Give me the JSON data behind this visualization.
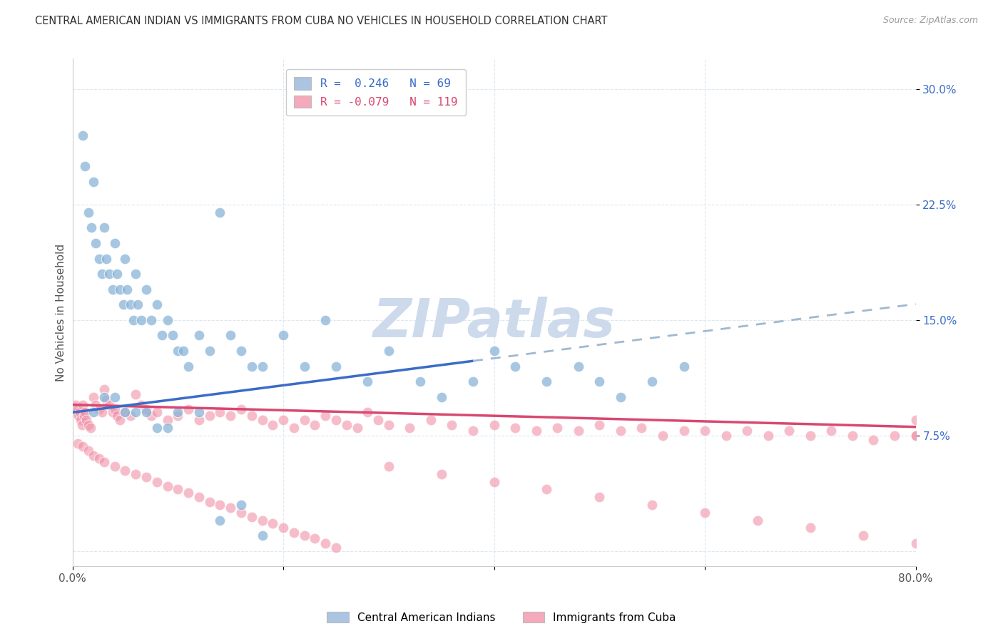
{
  "title": "CENTRAL AMERICAN INDIAN VS IMMIGRANTS FROM CUBA NO VEHICLES IN HOUSEHOLD CORRELATION CHART",
  "source": "Source: ZipAtlas.com",
  "ylabel": "No Vehicles in Household",
  "ytick_values": [
    0.0,
    7.5,
    15.0,
    22.5,
    30.0
  ],
  "xlim": [
    0,
    80
  ],
  "ylim": [
    -1,
    32
  ],
  "legend_blue_label": "R =  0.246   N = 69",
  "legend_pink_label": "R = -0.079   N = 119",
  "legend_blue_color": "#aac4e2",
  "legend_pink_color": "#f5aabc",
  "blue_scatter_color": "#88b4d8",
  "pink_scatter_color": "#f090a8",
  "blue_line_color": "#3a6cc8",
  "pink_line_color": "#d84870",
  "blue_dashed_color": "#a0b8d0",
  "watermark": "ZIPatlas",
  "watermark_color": "#ccdaec",
  "background_color": "#ffffff",
  "grid_color": "#dde8f0",
  "blue_slope": 0.088,
  "blue_intercept": 9.0,
  "blue_solid_end": 38,
  "pink_slope": -0.018,
  "pink_intercept": 9.5,
  "blue_x": [
    1.0,
    1.2,
    1.5,
    1.8,
    2.0,
    2.2,
    2.5,
    2.8,
    3.0,
    3.2,
    3.5,
    3.8,
    4.0,
    4.2,
    4.5,
    4.8,
    5.0,
    5.2,
    5.5,
    5.8,
    6.0,
    6.2,
    6.5,
    7.0,
    7.5,
    8.0,
    8.5,
    9.0,
    9.5,
    10.0,
    10.5,
    11.0,
    12.0,
    13.0,
    14.0,
    15.0,
    16.0,
    17.0,
    18.0,
    20.0,
    22.0,
    24.0,
    25.0,
    28.0,
    30.0,
    33.0,
    35.0,
    38.0,
    40.0,
    42.0,
    45.0,
    48.0,
    50.0,
    52.0,
    55.0,
    58.0,
    2.0,
    3.0,
    4.0,
    5.0,
    6.0,
    7.0,
    8.0,
    9.0,
    10.0,
    12.0,
    14.0,
    16.0,
    18.0
  ],
  "blue_y": [
    27.0,
    25.0,
    22.0,
    21.0,
    24.0,
    20.0,
    19.0,
    18.0,
    21.0,
    19.0,
    18.0,
    17.0,
    20.0,
    18.0,
    17.0,
    16.0,
    19.0,
    17.0,
    16.0,
    15.0,
    18.0,
    16.0,
    15.0,
    17.0,
    15.0,
    16.0,
    14.0,
    15.0,
    14.0,
    13.0,
    13.0,
    12.0,
    14.0,
    13.0,
    22.0,
    14.0,
    13.0,
    12.0,
    12.0,
    14.0,
    12.0,
    15.0,
    12.0,
    11.0,
    13.0,
    11.0,
    10.0,
    11.0,
    13.0,
    12.0,
    11.0,
    12.0,
    11.0,
    10.0,
    11.0,
    12.0,
    9.0,
    10.0,
    10.0,
    9.0,
    9.0,
    9.0,
    8.0,
    8.0,
    9.0,
    9.0,
    2.0,
    3.0,
    1.0
  ],
  "pink_x": [
    0.3,
    0.4,
    0.5,
    0.6,
    0.7,
    0.8,
    0.9,
    1.0,
    1.1,
    1.2,
    1.3,
    1.5,
    1.7,
    2.0,
    2.2,
    2.5,
    2.8,
    3.0,
    3.2,
    3.5,
    3.8,
    4.0,
    4.2,
    4.5,
    5.0,
    5.5,
    6.0,
    6.5,
    7.0,
    7.5,
    8.0,
    9.0,
    10.0,
    11.0,
    12.0,
    13.0,
    14.0,
    15.0,
    16.0,
    17.0,
    18.0,
    19.0,
    20.0,
    21.0,
    22.0,
    23.0,
    24.0,
    25.0,
    26.0,
    27.0,
    28.0,
    29.0,
    30.0,
    32.0,
    34.0,
    36.0,
    38.0,
    40.0,
    42.0,
    44.0,
    46.0,
    48.0,
    50.0,
    52.0,
    54.0,
    56.0,
    58.0,
    60.0,
    62.0,
    64.0,
    66.0,
    68.0,
    70.0,
    72.0,
    74.0,
    76.0,
    78.0,
    80.0,
    0.5,
    1.0,
    1.5,
    2.0,
    2.5,
    3.0,
    4.0,
    5.0,
    6.0,
    7.0,
    8.0,
    9.0,
    10.0,
    11.0,
    12.0,
    13.0,
    14.0,
    15.0,
    16.0,
    17.0,
    18.0,
    19.0,
    20.0,
    21.0,
    22.0,
    23.0,
    24.0,
    25.0,
    30.0,
    35.0,
    40.0,
    45.0,
    50.0,
    55.0,
    60.0,
    65.0,
    70.0,
    75.0,
    80.0,
    80.0,
    80.0
  ],
  "pink_y": [
    9.5,
    9.0,
    9.2,
    8.8,
    9.0,
    8.5,
    8.2,
    9.5,
    8.8,
    9.0,
    8.5,
    8.2,
    8.0,
    10.0,
    9.5,
    9.2,
    9.0,
    10.5,
    9.8,
    9.5,
    9.0,
    9.2,
    8.8,
    8.5,
    9.0,
    8.8,
    10.2,
    9.5,
    9.2,
    8.8,
    9.0,
    8.5,
    8.8,
    9.2,
    8.5,
    8.8,
    9.0,
    8.8,
    9.2,
    8.8,
    8.5,
    8.2,
    8.5,
    8.0,
    8.5,
    8.2,
    8.8,
    8.5,
    8.2,
    8.0,
    9.0,
    8.5,
    8.2,
    8.0,
    8.5,
    8.2,
    7.8,
    8.2,
    8.0,
    7.8,
    8.0,
    7.8,
    8.2,
    7.8,
    8.0,
    7.5,
    7.8,
    7.8,
    7.5,
    7.8,
    7.5,
    7.8,
    7.5,
    7.8,
    7.5,
    7.2,
    7.5,
    7.5,
    7.0,
    6.8,
    6.5,
    6.2,
    6.0,
    5.8,
    5.5,
    5.2,
    5.0,
    4.8,
    4.5,
    4.2,
    4.0,
    3.8,
    3.5,
    3.2,
    3.0,
    2.8,
    2.5,
    2.2,
    2.0,
    1.8,
    1.5,
    1.2,
    1.0,
    0.8,
    0.5,
    0.2,
    5.5,
    5.0,
    4.5,
    4.0,
    3.5,
    3.0,
    2.5,
    2.0,
    1.5,
    1.0,
    0.5,
    8.5,
    7.5
  ]
}
